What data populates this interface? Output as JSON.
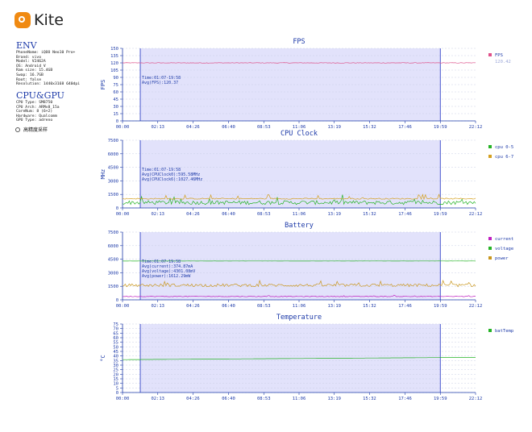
{
  "app": {
    "logo_text": "Kite"
  },
  "env": {
    "title": "ENV",
    "lines": [
      "PhoneName: iQOO Neo10 Pro+",
      "Brand: vivo",
      "Model: V2462A",
      "OS: Android V",
      "Ram size: 15.4GB",
      "Swap: 16.7GB",
      "Root: false",
      "Resolution: 1440x3168 640dpi"
    ]
  },
  "cpu_gpu": {
    "title": "CPU&GPU",
    "lines": [
      "CPU Type: SM8750",
      "CPU Arch: ARMv8_15a",
      "CoreNum: 8 (6+2)",
      "Hardware: Qualcomm",
      "GPU Type: adreno"
    ]
  },
  "options": {
    "high_freq_label": "高精度采样"
  },
  "colors": {
    "fps": "#e0508a",
    "cpu05": "#25b325",
    "cpu67": "#d4a020",
    "current": "#c020c0",
    "voltage": "#25b325",
    "power": "#c8961e",
    "batTemp": "#25b325",
    "selection": "#e2e2fb",
    "axis": "#1d3aa8"
  },
  "chart_data": [
    {
      "type": "line",
      "title": "FPS",
      "ylabel": "FPS",
      "ylim": [
        0,
        150
      ],
      "yticks": [
        0,
        15,
        30,
        45,
        60,
        75,
        90,
        105,
        120,
        135,
        150
      ],
      "x_ticks": [
        "00:00",
        "02:13",
        "04:26",
        "06:40",
        "08:53",
        "11:06",
        "13:19",
        "15:32",
        "17:46",
        "19:59",
        "22:12"
      ],
      "selection": {
        "start": "01:07",
        "end": "19:59"
      },
      "annotation": [
        "Time:01:07-19:58",
        "Avg(FPS):120.37"
      ],
      "legend": [
        {
          "name": "FPS",
          "value_label": "120.42",
          "color_key": "fps"
        }
      ],
      "series": [
        {
          "name": "FPS",
          "color_key": "fps",
          "base": 120,
          "noise": 0.6,
          "spikes": 0
        }
      ]
    },
    {
      "type": "line",
      "title": "CPU Clock",
      "ylabel": "MHz",
      "ylim": [
        0,
        7500
      ],
      "yticks": [
        0,
        1500,
        3000,
        4500,
        6000,
        7500
      ],
      "x_ticks": [
        "00:00",
        "02:13",
        "04:26",
        "06:40",
        "08:53",
        "11:06",
        "13:19",
        "15:32",
        "17:46",
        "19:59",
        "22:12"
      ],
      "selection": {
        "start": "01:07",
        "end": "19:59"
      },
      "annotation": [
        "Time:01:07-19:58",
        "Avg(CPUClock0):595.58MHz",
        "Avg(CPUClock6):1027.46MHz"
      ],
      "legend": [
        {
          "name": "cpu 0-5",
          "color_key": "cpu05"
        },
        {
          "name": "cpu 6-7",
          "color_key": "cpu67"
        }
      ],
      "series": [
        {
          "name": "cpu 0-5",
          "color_key": "cpu05",
          "base": 595,
          "noise": 220,
          "spikes": 700
        },
        {
          "name": "cpu 6-7",
          "color_key": "cpu67",
          "base": 1027,
          "noise": 60,
          "spikes": 500
        }
      ]
    },
    {
      "type": "line",
      "title": "Battery",
      "ylabel": "",
      "ylim": [
        0,
        7500
      ],
      "yticks": [
        0,
        1500,
        3000,
        4500,
        6000,
        7500
      ],
      "x_ticks": [
        "00:00",
        "02:13",
        "04:26",
        "06:40",
        "08:53",
        "11:06",
        "13:19",
        "15:32",
        "17:46",
        "19:59",
        "22:12"
      ],
      "selection": {
        "start": "01:07",
        "end": "19:59"
      },
      "annotation": [
        "Time:01:07-19:58",
        "Avg(current):374.87mA",
        "Avg(voltage):4301.08mV",
        "Avg(power):1612.29mW"
      ],
      "legend": [
        {
          "name": "current",
          "color_key": "current"
        },
        {
          "name": "voltage",
          "color_key": "voltage"
        },
        {
          "name": "power",
          "color_key": "power"
        }
      ],
      "series": [
        {
          "name": "current",
          "color_key": "current",
          "base": 375,
          "noise": 40,
          "spikes": 120
        },
        {
          "name": "voltage",
          "color_key": "voltage",
          "base": 4301,
          "noise": 8,
          "spikes": 0
        },
        {
          "name": "power",
          "color_key": "power",
          "base": 1612,
          "noise": 160,
          "spikes": 500
        }
      ]
    },
    {
      "type": "line",
      "title": "Temperature",
      "ylabel": "°C",
      "ylim": [
        0,
        75
      ],
      "yticks": [
        0,
        5,
        10,
        15,
        20,
        25,
        30,
        35,
        40,
        45,
        50,
        55,
        60,
        65,
        70,
        75
      ],
      "x_ticks": [
        "00:00",
        "02:13",
        "04:26",
        "06:40",
        "08:53",
        "11:06",
        "13:19",
        "15:32",
        "17:46",
        "19:59",
        "22:12"
      ],
      "selection": {
        "start": "01:07",
        "end": "19:59"
      },
      "annotation": [],
      "legend": [
        {
          "name": "batTemp",
          "color_key": "batTemp"
        }
      ],
      "series": [
        {
          "name": "batTemp",
          "color_key": "batTemp",
          "start": 36,
          "end": 38.5,
          "noise": 0,
          "spikes": 0
        }
      ]
    }
  ]
}
